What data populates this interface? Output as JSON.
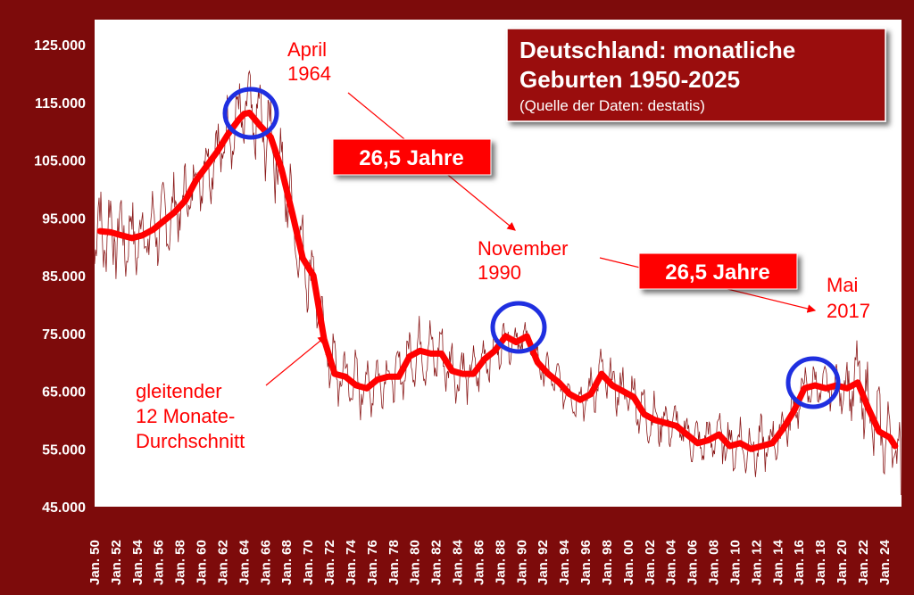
{
  "colors": {
    "frame": "#7d0b0b",
    "plot_background": "#ffffff",
    "monthly_line": "#8b1a1a",
    "average_line": "#ff0000",
    "annotation_text": "#ff0000",
    "circle": "#1f2fe0",
    "title_box": "#9a1010",
    "badge": "#ff0000"
  },
  "chart_data": {
    "type": "line",
    "title_line1": "Deutschland: monatliche",
    "title_line2": "Geburten 1950-2025",
    "subtitle": "(Quelle der Daten: destatis)",
    "ylim": [
      45000,
      125000
    ],
    "xlim": [
      1950.0,
      2025.6
    ],
    "y_ticks": [
      "45.000",
      "55.000",
      "65.000",
      "75.000",
      "85.000",
      "95.000",
      "105.000",
      "115.000",
      "125.000"
    ],
    "x_ticks": [
      "Jan. 50",
      "Jan. 52",
      "Jan. 54",
      "Jan. 56",
      "Jan. 58",
      "Jan. 60",
      "Jan. 62",
      "Jan. 64",
      "Jan. 66",
      "Jan. 68",
      "Jan. 70",
      "Jan. 72",
      "Jan. 74",
      "Jan. 76",
      "Jan. 78",
      "Jan. 80",
      "Jan. 82",
      "Jan. 84",
      "Jan. 86",
      "Jan. 88",
      "Jan. 90",
      "Jan. 92",
      "Jan. 94",
      "Jan. 96",
      "Jan. 98",
      "Jan. 00",
      "Jan. 02",
      "Jan. 04",
      "Jan. 06",
      "Jan. 08",
      "Jan. 10",
      "Jan. 12",
      "Jan. 14",
      "Jan. 16",
      "Jan. 18",
      "Jan. 20",
      "Jan. 22",
      "Jan. 24"
    ],
    "grid": false,
    "legend": "none",
    "series": [
      {
        "name": "gleitender 12 Monate-Durchschnitt",
        "x": [
          1950.5,
          1951.5,
          1952.5,
          1953.5,
          1954.5,
          1955.5,
          1956.5,
          1957.5,
          1958.5,
          1959.5,
          1960.5,
          1961.5,
          1962.5,
          1963.5,
          1964.0,
          1964.5,
          1965.5,
          1966.5,
          1967.5,
          1968.5,
          1969.5,
          1970.5,
          1971.5,
          1972.5,
          1973.5,
          1974.5,
          1975.5,
          1976.5,
          1977.5,
          1978.5,
          1979.5,
          1980.5,
          1981.5,
          1982.5,
          1983.5,
          1984.5,
          1985.5,
          1986.5,
          1987.5,
          1988.5,
          1989.5,
          1990.5,
          1991.5,
          1992.5,
          1993.5,
          1994.5,
          1995.5,
          1996.5,
          1997.5,
          1998.5,
          1999.5,
          2000.5,
          2001.5,
          2002.5,
          2003.5,
          2004.5,
          2005.5,
          2006.5,
          2007.5,
          2008.5,
          2009.5,
          2010.5,
          2011.5,
          2012.5,
          2013.5,
          2014.5,
          2015.5,
          2016.5,
          2017.5,
          2018.5,
          2019.5,
          2020.5,
          2021.5,
          2022.5,
          2023.5,
          2024.5,
          2025.0
        ],
        "values": [
          92700,
          92500,
          92000,
          91500,
          92000,
          93000,
          94500,
          96000,
          98000,
          101500,
          104000,
          106500,
          109500,
          112000,
          113000,
          113200,
          111000,
          109000,
          103500,
          96000,
          88000,
          85000,
          74000,
          68000,
          67500,
          66000,
          65500,
          67000,
          67500,
          67500,
          71000,
          72000,
          71500,
          71500,
          68500,
          68000,
          68000,
          70500,
          72000,
          74500,
          73500,
          74500,
          70000,
          68000,
          66500,
          64500,
          63500,
          64500,
          68000,
          66000,
          65000,
          64000,
          61000,
          60000,
          59500,
          59000,
          57500,
          56000,
          56500,
          57500,
          55500,
          56000,
          55000,
          55500,
          56000,
          58500,
          61500,
          65500,
          66000,
          65500,
          66000,
          65500,
          66500,
          62000,
          58000,
          57000,
          55500
        ]
      },
      {
        "name": "monatliche Geburten",
        "amplitude": [
          10000,
          9000,
          8500,
          8000,
          7500,
          7500,
          7000,
          7000,
          7000,
          7500,
          7500,
          8500,
          9000,
          9000,
          9000,
          8500,
          8000,
          7500,
          7000,
          6500,
          6000,
          5500,
          5000,
          5500,
          6000,
          6500,
          6500,
          6000,
          5500,
          5000,
          4500,
          4500,
          4000,
          4000,
          3500,
          4000,
          4500,
          5000,
          5000,
          5000,
          5000,
          5500,
          5000,
          4500,
          4500,
          4500,
          5000,
          5000,
          5500,
          6000,
          5500,
          5000,
          5000,
          5000,
          4000,
          4000,
          5000,
          8000,
          9500,
          6000
        ],
        "amplitude_x": [
          1950,
          1951.3,
          1952.5,
          1953.8,
          1955,
          1956.3,
          1957.5,
          1958.8,
          1960,
          1961.3,
          1962.5,
          1963.8,
          1965,
          1966.3,
          1967.5,
          1968.8,
          1970,
          1971.3,
          1972.5,
          1973.8,
          1975,
          1976.3,
          1977.5,
          1978.8,
          1980,
          1981.3,
          1982.5,
          1983.8,
          1985,
          1986.3,
          1987.5,
          1988.8,
          1990,
          1991.3,
          1992.5,
          1993.8,
          1995,
          1996.3,
          1997.5,
          1998.8,
          2000,
          2001.3,
          2002.5,
          2003.8,
          2005,
          2006.3,
          2007.5,
          2008.8,
          2010,
          2011.3,
          2012.5,
          2013.8,
          2015,
          2016.3,
          2017.5,
          2018.8,
          2020,
          2021.3,
          2022.5,
          2025.5
        ]
      }
    ],
    "annotations": {
      "peak_1964_line1": "April",
      "peak_1964_line2": "1964",
      "peak_1990_line1": "November",
      "peak_1990_line2": "1990",
      "peak_2017_line1": "Mai",
      "peak_2017_line2": "2017",
      "gap_label_1": "26,5 Jahre",
      "gap_label_2": "26,5 Jahre",
      "average_label_line1": "gleitender",
      "average_label_line2": "12 Monate-",
      "average_label_line3": "Durchschnitt"
    }
  }
}
